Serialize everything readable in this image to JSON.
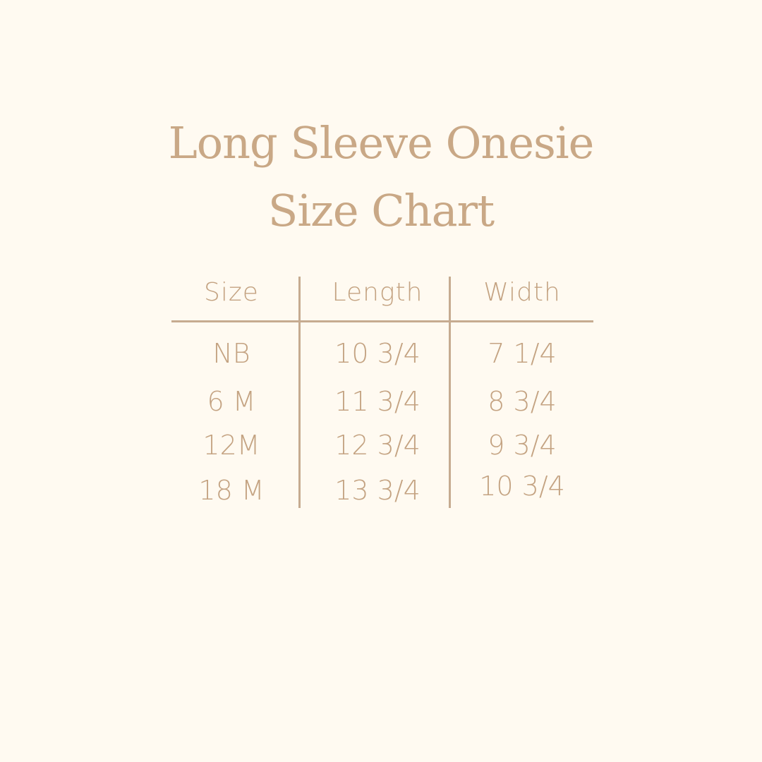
{
  "title": {
    "line1": "Long Sleeve Onesie",
    "line2": "Size Chart"
  },
  "table": {
    "headers": [
      "Size",
      "Length",
      "Width"
    ],
    "rows": [
      [
        "NB",
        "10 3/4",
        "7 1/4"
      ],
      [
        "6 M",
        "11 3/4",
        "8 3/4"
      ],
      [
        "12M",
        "12 3/4",
        "9 3/4"
      ],
      [
        "18 M",
        "13 3/4",
        "10 3/4"
      ]
    ]
  },
  "colors": {
    "background": "#fffaf1",
    "text": "#c4a382",
    "lines": "#c6ab90"
  }
}
